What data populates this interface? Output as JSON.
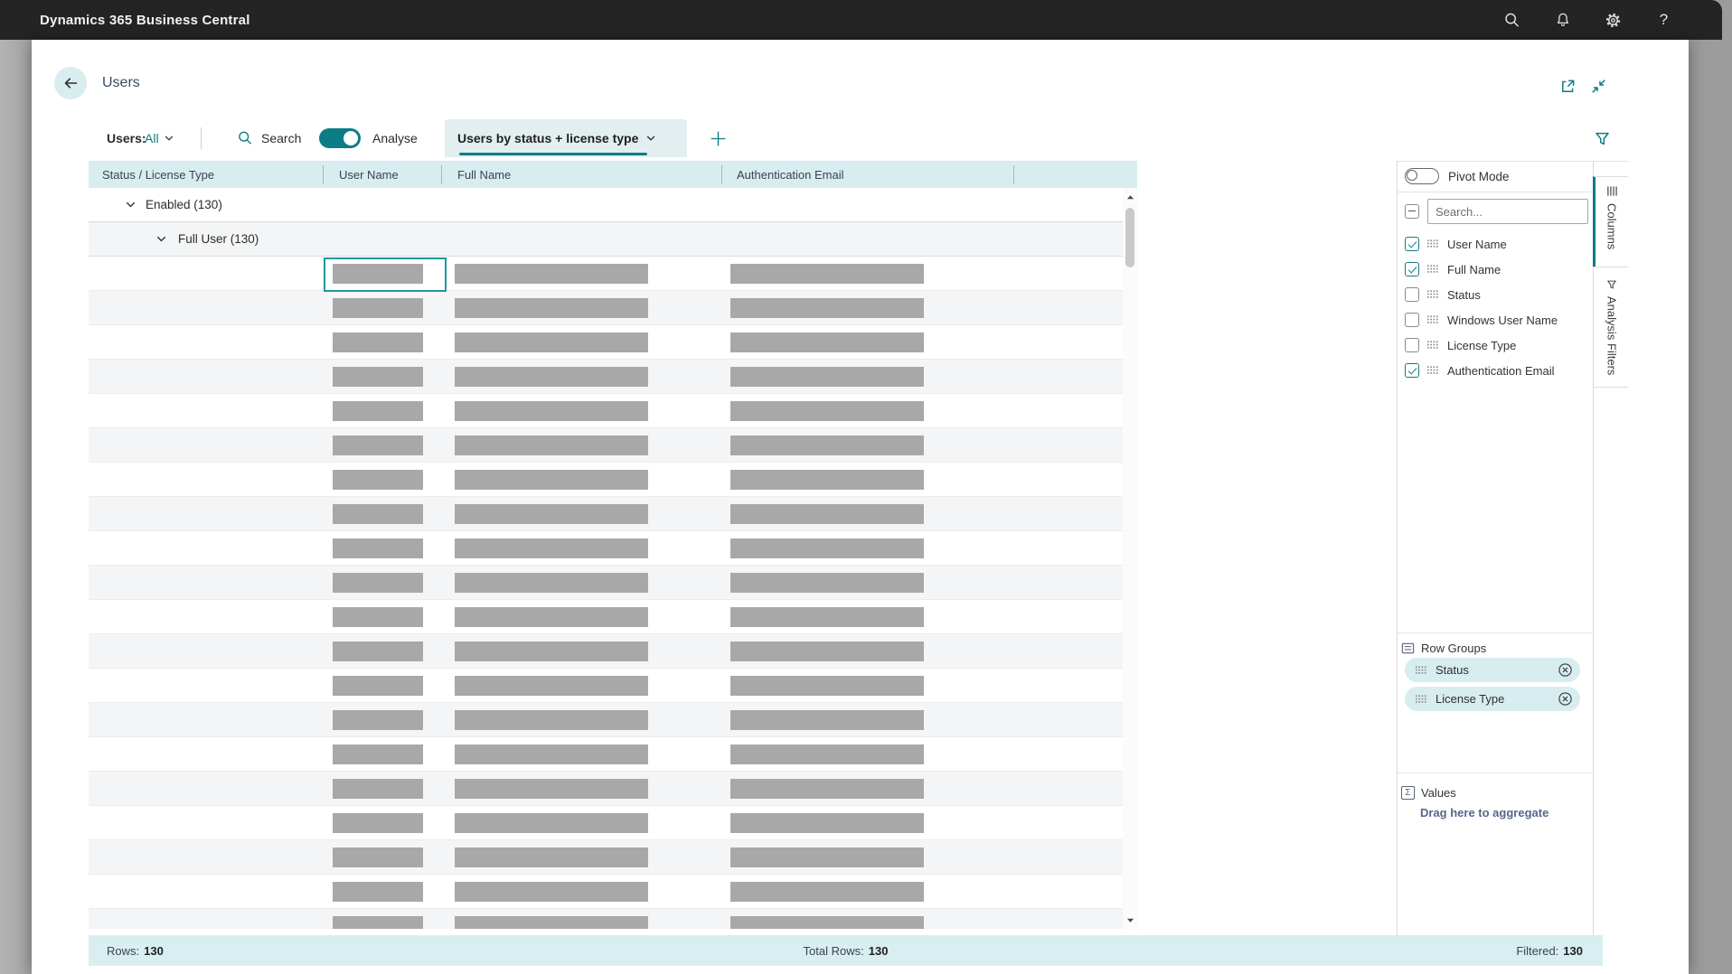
{
  "topbar": {
    "title": "Dynamics 365 Business Central"
  },
  "page": {
    "title": "Users"
  },
  "toolbar": {
    "scope_label": "Users:",
    "scope_value": "All",
    "search_label": "Search",
    "analyse_label": "Analyse",
    "analyse_on": true,
    "view_tab": "Users by status + license type"
  },
  "grid": {
    "columns": [
      "Status / License Type",
      "User Name",
      "Full Name",
      "Authentication Email"
    ],
    "group_rows": [
      {
        "label": "Enabled (130)",
        "indent": 1
      },
      {
        "label": "Full User (130)",
        "indent": 2
      }
    ],
    "placeholder_row_count": 20
  },
  "panel": {
    "pivot_mode_label": "Pivot Mode",
    "pivot_mode_on": false,
    "search_placeholder": "Search...",
    "fields": [
      {
        "label": "User Name",
        "checked": true
      },
      {
        "label": "Full Name",
        "checked": true
      },
      {
        "label": "Status",
        "checked": false
      },
      {
        "label": "Windows User Name",
        "checked": false
      },
      {
        "label": "License Type",
        "checked": false
      },
      {
        "label": "Authentication Email",
        "checked": true
      }
    ],
    "row_groups_title": "Row Groups",
    "row_group_items": [
      "Status",
      "License Type"
    ],
    "values_title": "Values",
    "values_hint": "Drag here to aggregate",
    "side_tabs": [
      "Columns",
      "Analysis Filters"
    ]
  },
  "statusbar": {
    "rows_label": "Rows:",
    "rows_value": "130",
    "total_label": "Total Rows:",
    "total_value": "130",
    "filtered_label": "Filtered:",
    "filtered_value": "130"
  },
  "colors": {
    "accent_teal": "#0f7b83",
    "light_teal": "#d8edf0",
    "selection_outline": "#1d98a0",
    "placeholder_bar": "#a8a8a8",
    "topbar_bg": "#242424"
  }
}
